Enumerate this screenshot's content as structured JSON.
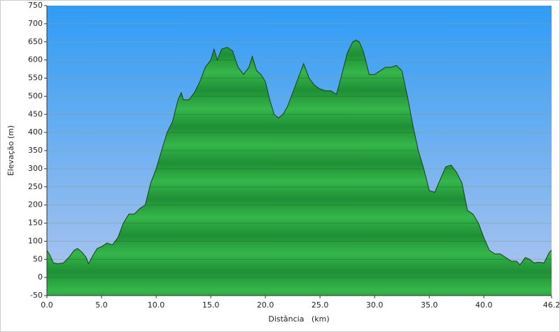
{
  "chart_data": {
    "type": "area",
    "x_label": "Distância   (km)",
    "y_label": "Elevação (m)",
    "x": [
      0,
      0.3,
      0.6,
      1.0,
      1.5,
      2.0,
      2.5,
      2.8,
      3.2,
      3.6,
      3.8,
      4.2,
      4.6,
      5.0,
      5.5,
      6.0,
      6.5,
      7.0,
      7.5,
      8.0,
      8.5,
      9.0,
      9.5,
      10.0,
      10.5,
      11.0,
      11.5,
      12.0,
      12.3,
      12.5,
      13.0,
      13.5,
      14.0,
      14.5,
      15.0,
      15.3,
      15.6,
      16.0,
      16.5,
      17.0,
      17.5,
      18.0,
      18.5,
      18.8,
      19.2,
      19.6,
      20.0,
      20.4,
      20.8,
      21.2,
      21.6,
      22.0,
      22.5,
      23.0,
      23.5,
      24.0,
      24.5,
      25.0,
      25.5,
      26.0,
      26.5,
      27.0,
      27.5,
      28.0,
      28.3,
      28.6,
      29.0,
      29.5,
      30.0,
      30.5,
      31.0,
      31.5,
      32.0,
      32.5,
      33.0,
      33.5,
      34.0,
      34.5,
      35.0,
      35.5,
      36.0,
      36.5,
      37.0,
      37.5,
      38.0,
      38.5,
      39.0,
      39.5,
      40.0,
      40.5,
      41.0,
      41.5,
      42.0,
      42.5,
      43.0,
      43.3,
      43.8,
      44.2,
      44.6,
      45.0,
      45.5,
      46.0,
      46.2
    ],
    "values": [
      75,
      60,
      40,
      38,
      40,
      55,
      75,
      80,
      70,
      55,
      38,
      60,
      80,
      85,
      95,
      90,
      110,
      150,
      175,
      175,
      190,
      200,
      260,
      300,
      350,
      400,
      430,
      490,
      510,
      490,
      490,
      510,
      540,
      580,
      600,
      630,
      600,
      630,
      635,
      625,
      580,
      560,
      580,
      610,
      570,
      560,
      540,
      490,
      450,
      440,
      450,
      470,
      510,
      550,
      590,
      550,
      530,
      520,
      515,
      515,
      505,
      560,
      620,
      650,
      655,
      650,
      620,
      560,
      560,
      570,
      580,
      580,
      585,
      570,
      500,
      420,
      350,
      300,
      240,
      235,
      270,
      305,
      310,
      290,
      260,
      185,
      175,
      150,
      110,
      75,
      65,
      65,
      55,
      45,
      45,
      35,
      55,
      50,
      40,
      42,
      40,
      70,
      75
    ],
    "color": "#1e9a3a",
    "xlim": [
      0,
      46.2
    ],
    "xticks": [
      {
        "value": 0,
        "label": "0.0"
      },
      {
        "value": 5,
        "label": "5.0"
      },
      {
        "value": 10,
        "label": "10.0"
      },
      {
        "value": 15,
        "label": "15.0"
      },
      {
        "value": 20,
        "label": "20.0"
      },
      {
        "value": 25,
        "label": "25.0"
      },
      {
        "value": 30,
        "label": "30.0"
      },
      {
        "value": 35,
        "label": "35.0"
      },
      {
        "value": 40,
        "label": "40.0"
      },
      46.2
    ],
    "ylim": [
      -50,
      750
    ],
    "yticks": [
      -50,
      0,
      50,
      100,
      150,
      200,
      250,
      300,
      350,
      400,
      450,
      500,
      550,
      600,
      650,
      700,
      750
    ],
    "grid": true
  }
}
